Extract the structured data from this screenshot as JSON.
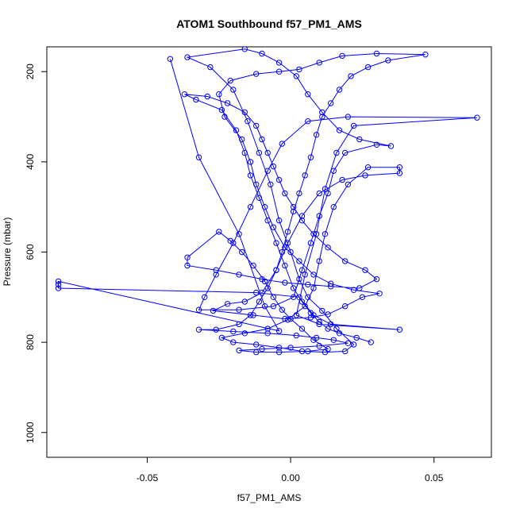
{
  "chart_data": {
    "type": "scatter",
    "title": "ATOM1 Southbound f57_PM1_AMS",
    "xlabel": "f57_PM1_AMS",
    "ylabel": "Pressure (mbar)",
    "xlim": [
      -0.085,
      0.07
    ],
    "ylim": [
      1055,
      145
    ],
    "y_axis_inverted": true,
    "x_ticks": [
      -0.05,
      0.0,
      0.05
    ],
    "x_tick_labels": [
      "-0.05",
      "0.00",
      "0.05"
    ],
    "y_ticks": [
      200,
      400,
      600,
      800,
      1000
    ],
    "y_tick_labels": [
      "200",
      "400",
      "600",
      "800",
      "1000"
    ],
    "grid": false,
    "legend": "none",
    "markers": "open-circle",
    "connected_lines": true,
    "series_color": "#0000ff",
    "series": [
      {
        "points": [
          [
            -0.042,
            172
          ],
          [
            -0.032,
            390
          ],
          [
            -0.018,
            560
          ],
          [
            -0.009,
            720
          ],
          [
            -0.004,
            775
          ],
          [
            -0.081,
            665
          ],
          [
            -0.081,
            672
          ],
          [
            -0.081,
            680
          ],
          [
            -0.012,
            690
          ],
          [
            0.003,
            700
          ],
          [
            0.008,
            740
          ],
          [
            0.014,
            760
          ],
          [
            0.038,
            772
          ],
          [
            0.01,
            760
          ],
          [
            0.002,
            740
          ],
          [
            0.005,
            650
          ],
          [
            0.009,
            560
          ],
          [
            0.012,
            460
          ],
          [
            0.016,
            380
          ],
          [
            0.022,
            320
          ],
          [
            0.065,
            302
          ],
          [
            0.02,
            300
          ],
          [
            0.006,
            310
          ],
          [
            -0.003,
            360
          ],
          [
            -0.008,
            420
          ],
          [
            -0.014,
            500
          ],
          [
            -0.02,
            580
          ],
          [
            -0.026,
            650
          ],
          [
            -0.03,
            700
          ],
          [
            -0.032,
            728
          ],
          [
            -0.018,
            728
          ],
          [
            -0.006,
            720
          ],
          [
            0.001,
            700
          ],
          [
            0.004,
            640
          ],
          [
            0.007,
            580
          ],
          [
            0.01,
            520
          ],
          [
            0.013,
            470
          ],
          [
            0.015,
            420
          ],
          [
            0.019,
            380
          ],
          [
            0.03,
            362
          ],
          [
            0.035,
            365
          ],
          [
            0.024,
            350
          ],
          [
            0.017,
            330
          ],
          [
            0.011,
            290
          ],
          [
            0.006,
            250
          ],
          [
            0.002,
            210
          ],
          [
            -0.004,
            180
          ],
          [
            -0.01,
            160
          ],
          [
            -0.016,
            150
          ],
          [
            -0.036,
            168
          ],
          [
            -0.028,
            190
          ],
          [
            -0.02,
            240
          ],
          [
            -0.015,
            310
          ],
          [
            -0.011,
            380
          ],
          [
            -0.007,
            450
          ],
          [
            -0.004,
            530
          ],
          [
            0.0,
            600
          ],
          [
            0.003,
            660
          ],
          [
            0.006,
            700
          ],
          [
            0.011,
            730
          ],
          [
            0.016,
            770
          ],
          [
            0.022,
            805
          ],
          [
            0.019,
            820
          ],
          [
            0.012,
            822
          ],
          [
            0.004,
            820
          ],
          [
            -0.004,
            812
          ],
          [
            -0.012,
            805
          ],
          [
            -0.02,
            800
          ],
          [
            -0.024,
            790
          ],
          [
            -0.016,
            780
          ],
          [
            -0.008,
            770
          ],
          [
            -0.001,
            750
          ],
          [
            0.005,
            720
          ],
          [
            0.008,
            680
          ],
          [
            0.01,
            620
          ],
          [
            0.012,
            560
          ],
          [
            0.015,
            500
          ],
          [
            0.02,
            450
          ],
          [
            0.027,
            412
          ],
          [
            0.038,
            412
          ],
          [
            0.038,
            425
          ],
          [
            0.026,
            430
          ],
          [
            0.018,
            440
          ],
          [
            0.01,
            470
          ],
          [
            0.004,
            520
          ],
          [
            -0.001,
            580
          ],
          [
            -0.005,
            640
          ],
          [
            -0.01,
            690
          ],
          [
            -0.016,
            710
          ],
          [
            -0.022,
            715
          ],
          [
            -0.027,
            730
          ],
          [
            -0.013,
            740
          ],
          [
            -0.002,
            748
          ],
          [
            0.007,
            745
          ],
          [
            0.013,
            738
          ],
          [
            0.019,
            720
          ],
          [
            0.025,
            700
          ],
          [
            0.031,
            692
          ],
          [
            0.022,
            684
          ],
          [
            0.014,
            670
          ],
          [
            0.008,
            650
          ],
          [
            0.003,
            620
          ],
          [
            -0.002,
            590
          ],
          [
            -0.006,
            545
          ],
          [
            -0.009,
            500
          ],
          [
            -0.012,
            450
          ],
          [
            -0.014,
            400
          ],
          [
            -0.017,
            350
          ],
          [
            -0.023,
            300
          ],
          [
            -0.025,
            250
          ],
          [
            -0.021,
            220
          ],
          [
            -0.012,
            205
          ],
          [
            -0.004,
            200
          ],
          [
            0.003,
            195
          ],
          [
            0.01,
            180
          ],
          [
            0.018,
            165
          ],
          [
            0.03,
            160
          ],
          [
            0.047,
            162
          ],
          [
            0.034,
            175
          ],
          [
            0.027,
            190
          ],
          [
            0.021,
            210
          ],
          [
            0.017,
            240
          ],
          [
            0.014,
            270
          ],
          [
            0.011,
            300
          ],
          [
            0.009,
            340
          ],
          [
            0.007,
            390
          ],
          [
            0.005,
            430
          ],
          [
            0.003,
            470
          ],
          [
            0.001,
            510
          ],
          [
            -0.001,
            555
          ],
          [
            -0.003,
            600
          ],
          [
            -0.005,
            640
          ],
          [
            -0.008,
            680
          ],
          [
            -0.011,
            710
          ],
          [
            -0.014,
            740
          ],
          [
            -0.018,
            760
          ],
          [
            -0.026,
            772
          ],
          [
            -0.032,
            772
          ],
          [
            -0.02,
            776
          ],
          [
            -0.008,
            780
          ],
          [
            0.002,
            785
          ],
          [
            0.009,
            790
          ],
          [
            0.015,
            795
          ],
          [
            0.02,
            802
          ],
          [
            0.01,
            808
          ],
          [
            0.0,
            812
          ],
          [
            -0.01,
            815
          ],
          [
            -0.018,
            818
          ],
          [
            -0.012,
            822
          ],
          [
            -0.004,
            822
          ],
          [
            0.006,
            820
          ],
          [
            0.013,
            815
          ],
          [
            0.008,
            795
          ],
          [
            0.004,
            770
          ],
          [
            0.0,
            748
          ],
          [
            -0.003,
            728
          ],
          [
            -0.006,
            700
          ],
          [
            -0.009,
            665
          ],
          [
            -0.013,
            630
          ],
          [
            -0.017,
            600
          ],
          [
            -0.021,
            575
          ],
          [
            -0.025,
            555
          ],
          [
            -0.036,
            612
          ],
          [
            -0.036,
            630
          ],
          [
            -0.026,
            640
          ],
          [
            -0.018,
            650
          ],
          [
            -0.01,
            660
          ],
          [
            -0.002,
            668
          ],
          [
            0.006,
            672
          ],
          [
            0.014,
            676
          ],
          [
            0.024,
            680
          ],
          [
            0.03,
            660
          ],
          [
            0.026,
            640
          ],
          [
            0.019,
            620
          ],
          [
            0.013,
            590
          ],
          [
            0.008,
            560
          ],
          [
            0.004,
            530
          ],
          [
            0.001,
            500
          ],
          [
            -0.002,
            470
          ],
          [
            -0.004,
            440
          ],
          [
            -0.006,
            410
          ],
          [
            -0.008,
            380
          ],
          [
            -0.01,
            350
          ],
          [
            -0.012,
            320
          ],
          [
            -0.016,
            290
          ],
          [
            -0.022,
            270
          ],
          [
            -0.029,
            255
          ],
          [
            -0.037,
            250
          ],
          [
            -0.033,
            262
          ],
          [
            -0.024,
            285
          ],
          [
            -0.019,
            330
          ],
          [
            -0.016,
            380
          ],
          [
            -0.014,
            430
          ],
          [
            -0.011,
            480
          ],
          [
            -0.008,
            530
          ],
          [
            -0.005,
            580
          ],
          [
            -0.002,
            630
          ],
          [
            0.001,
            680
          ],
          [
            0.004,
            710
          ],
          [
            0.007,
            735
          ],
          [
            0.01,
            755
          ],
          [
            0.013,
            770
          ],
          [
            0.017,
            780
          ],
          [
            0.023,
            790
          ],
          [
            0.028,
            800
          ]
        ]
      }
    ]
  }
}
